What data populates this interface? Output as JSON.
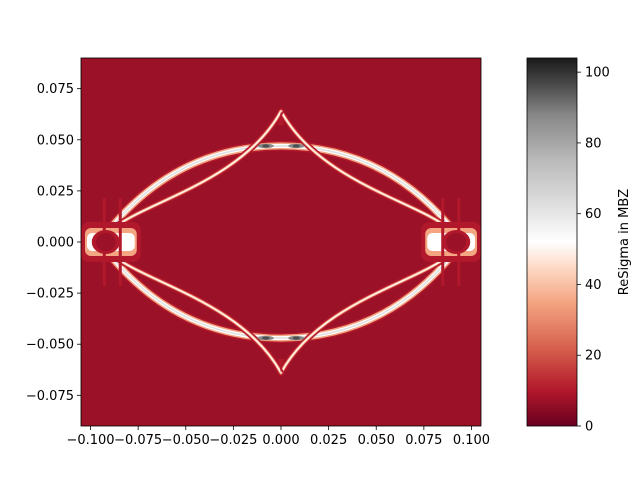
{
  "chart_data": {
    "type": "heatmap",
    "subtype": "filled-contour",
    "title": "",
    "xlabel": "",
    "ylabel": "",
    "xlim": [
      -0.105,
      0.105
    ],
    "ylim": [
      -0.09,
      0.09
    ],
    "x_ticks": [
      -0.1,
      -0.075,
      -0.05,
      -0.025,
      0.0,
      0.025,
      0.05,
      0.075,
      0.1
    ],
    "x_tick_labels": [
      "−0.100",
      "−0.075",
      "−0.050",
      "−0.025",
      "0.000",
      "0.025",
      "0.050",
      "0.075",
      "0.100"
    ],
    "y_ticks": [
      0.075,
      0.05,
      0.025,
      0.0,
      -0.025,
      -0.05,
      -0.075
    ],
    "y_tick_labels": [
      "0.075",
      "0.050",
      "0.025",
      "0.000",
      "−0.025",
      "−0.050",
      "−0.075"
    ],
    "background_value": 0,
    "colormap": "RdGy",
    "colorbar": {
      "label": "ReSigma in MBZ",
      "range": [
        0,
        104
      ],
      "ticks": [
        0,
        20,
        40,
        60,
        80,
        100
      ],
      "tick_labels": [
        "0",
        "20",
        "40",
        "60",
        "80",
        "100"
      ],
      "colors": [
        {
          "value": 0,
          "color": "#67001f"
        },
        {
          "value": 10,
          "color": "#b2182b"
        },
        {
          "value": 22,
          "color": "#d6604d"
        },
        {
          "value": 35,
          "color": "#f4a582"
        },
        {
          "value": 45,
          "color": "#fddbc7"
        },
        {
          "value": 52,
          "color": "#ffffff"
        },
        {
          "value": 62,
          "color": "#e0e0e0"
        },
        {
          "value": 75,
          "color": "#bababa"
        },
        {
          "value": 88,
          "color": "#878787"
        },
        {
          "value": 96,
          "color": "#4d4d4d"
        },
        {
          "value": 104,
          "color": "#1a1a1a"
        }
      ]
    },
    "features": {
      "outer_arc_peak_y": 0.047,
      "inner_arc_tip_y": 0.064,
      "nodes_x": [
        -0.092,
        0.092
      ],
      "node_y": 0.0,
      "bright_spots_x": [
        -0.008,
        0.008
      ],
      "bright_spots_y": [
        0.047,
        -0.047
      ],
      "peak_value": 104
    }
  }
}
